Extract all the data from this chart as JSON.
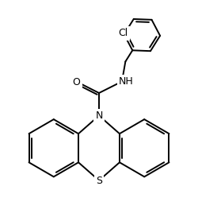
{
  "bg_color": "#ffffff",
  "line_color": "#000000",
  "line_width": 1.4,
  "fig_width": 2.5,
  "fig_height": 2.78,
  "dpi": 100,
  "xlim": [
    0,
    10
  ],
  "ylim": [
    0,
    11.12
  ]
}
